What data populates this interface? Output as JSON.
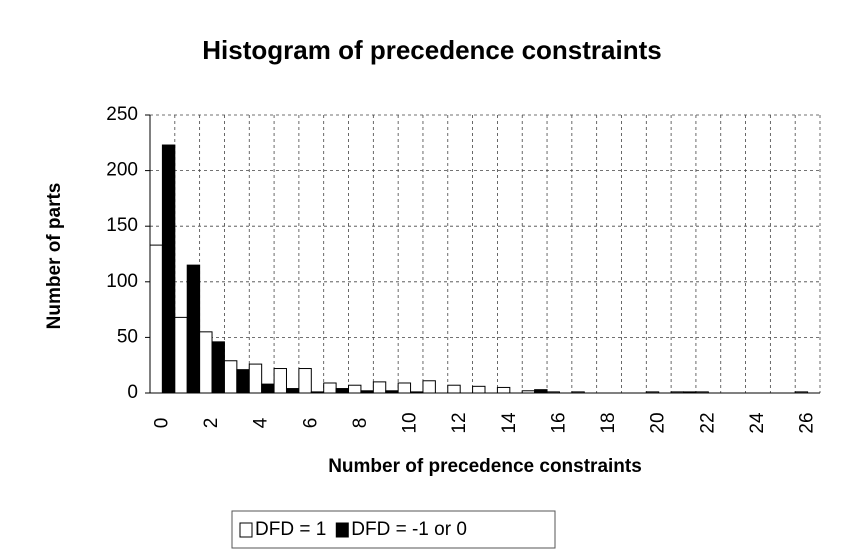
{
  "chart_data": {
    "type": "bar",
    "title": "Histogram of precedence constraints",
    "x_label": "Number of precedence constraints",
    "y_label": "Number of parts",
    "categories": [
      0,
      null,
      2,
      null,
      4,
      null,
      6,
      null,
      8,
      null,
      10,
      null,
      12,
      null,
      14,
      null,
      16,
      null,
      18,
      null,
      20,
      null,
      22,
      null,
      24,
      null,
      26
    ],
    "series": [
      {
        "name": "DFD = 1",
        "color": "#ffffff",
        "values": [
          133,
          68,
          55,
          29,
          26,
          22,
          22,
          9,
          7,
          10,
          9,
          11,
          7,
          6,
          5,
          2,
          1,
          1,
          0,
          0,
          1,
          1,
          1,
          0,
          0,
          0,
          1
        ]
      },
      {
        "name": "DFD = -1 or 0",
        "color": "#000000",
        "values": [
          223,
          115,
          46,
          21,
          8,
          4,
          1,
          4,
          2,
          2,
          1,
          0,
          0,
          0,
          0,
          3,
          0,
          0,
          0,
          0,
          0,
          1,
          0,
          0,
          0,
          0,
          0
        ]
      }
    ],
    "ylim": [
      0,
      250
    ],
    "yticks": [
      0,
      50,
      100,
      150,
      200,
      250
    ],
    "grid": true,
    "legend": "bottom"
  }
}
